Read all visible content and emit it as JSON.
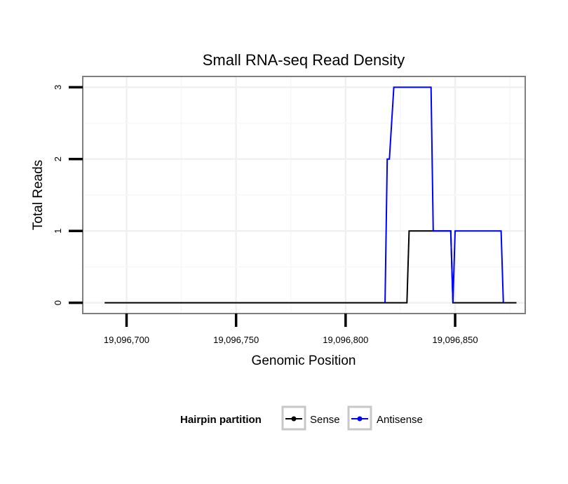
{
  "chart_data": {
    "type": "line",
    "title": "Small RNA-seq Read Density",
    "xlabel": "Genomic Position",
    "ylabel": "Total Reads",
    "xlim": [
      19096680,
      19096882
    ],
    "ylim": [
      -0.15,
      3.15
    ],
    "x_ticks": [
      19096700,
      19096750,
      19096800,
      19096850
    ],
    "x_tick_labels": [
      "19,096,700",
      "19,096,750",
      "19,096,800",
      "19,096,850"
    ],
    "y_ticks": [
      0,
      1,
      2,
      3
    ],
    "y_tick_labels": [
      "0",
      "1",
      "2",
      "3"
    ],
    "grid": true,
    "legend": {
      "title": "Hairpin partition",
      "position": "bottom",
      "entries": [
        "Sense",
        "Antisense"
      ]
    },
    "series": [
      {
        "name": "Sense",
        "color": "#000000",
        "points": [
          [
            19096690,
            0
          ],
          [
            19096828,
            0
          ],
          [
            19096829,
            1
          ],
          [
            19096848,
            1
          ],
          [
            19096849,
            0
          ],
          [
            19096878,
            0
          ]
        ]
      },
      {
        "name": "Antisense",
        "color": "#0000ff",
        "points": [
          [
            19096818,
            0
          ],
          [
            19096819,
            2
          ],
          [
            19096820,
            2
          ],
          [
            19096822,
            3
          ],
          [
            19096839,
            3
          ],
          [
            19096840,
            1
          ],
          [
            19096848,
            1
          ],
          [
            19096849,
            0
          ],
          [
            19096850,
            1
          ],
          [
            19096871,
            1
          ],
          [
            19096872,
            0
          ]
        ]
      }
    ]
  }
}
